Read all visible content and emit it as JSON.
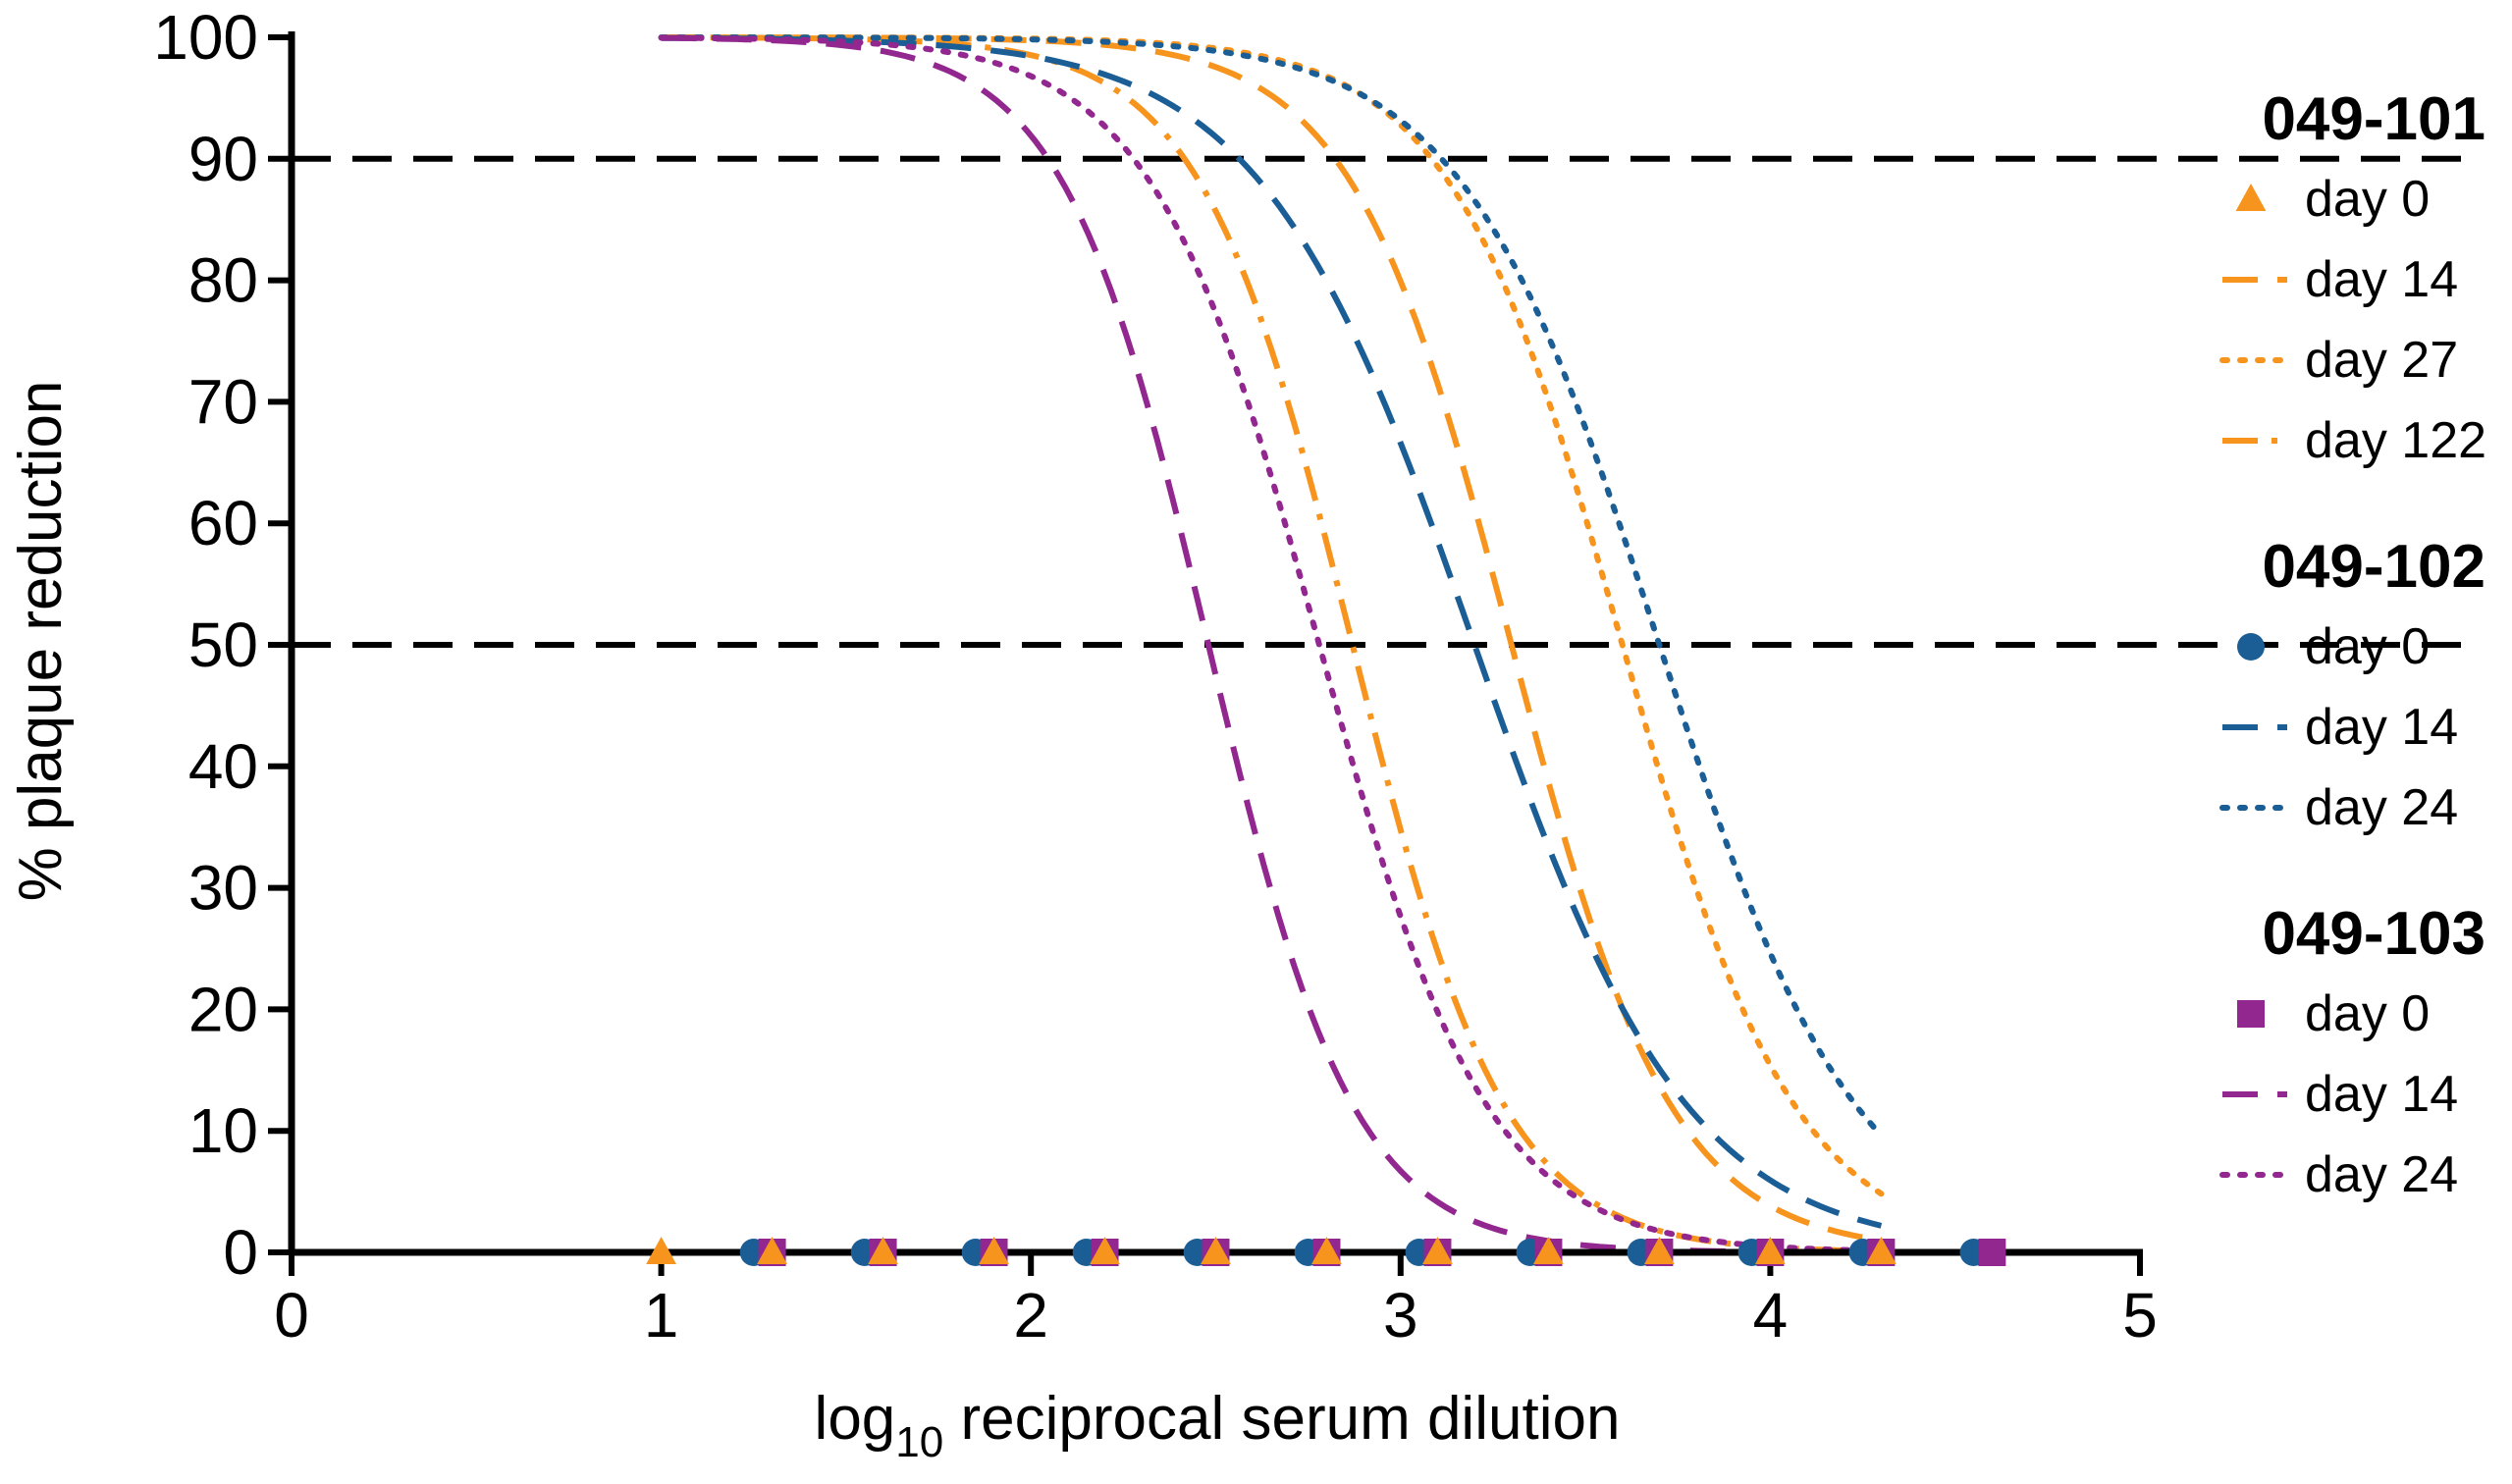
{
  "chart_data": {
    "type": "line",
    "title": "",
    "xlabel_main": "log",
    "xlabel_sub": "10",
    "xlabel_rest": " reciprocal serum dilution",
    "ylabel": "% plaque reduction",
    "xlim": [
      0,
      5
    ],
    "ylim": [
      0,
      100
    ],
    "x_ticks": [
      0,
      1,
      2,
      3,
      4,
      5
    ],
    "y_ticks": [
      0,
      10,
      20,
      30,
      40,
      50,
      60,
      70,
      80,
      90,
      100
    ],
    "reference_lines": [
      90,
      50
    ],
    "grid": false,
    "legend_position": "right",
    "colors": {
      "orange": "#F7941D",
      "blue": "#1B5E96",
      "purple": "#92278F",
      "axis": "#000000"
    },
    "legend_groups": [
      {
        "title": "049-101",
        "entries": [
          {
            "label": "day 0",
            "marker": "triangle",
            "color": "#F7941D"
          },
          {
            "label": "day 14",
            "dash": "dashed",
            "color": "#F7941D"
          },
          {
            "label": "day 27",
            "dash": "dotted",
            "color": "#F7941D"
          },
          {
            "label": "day 122",
            "dash": "dashdot",
            "color": "#F7941D"
          }
        ]
      },
      {
        "title": "049-102",
        "entries": [
          {
            "label": "day 0",
            "marker": "circle",
            "color": "#1B5E96"
          },
          {
            "label": "day 14",
            "dash": "dashed",
            "color": "#1B5E96"
          },
          {
            "label": "day 24",
            "dash": "dotted",
            "color": "#1B5E96"
          }
        ]
      },
      {
        "title": "049-103",
        "entries": [
          {
            "label": "day 0",
            "marker": "square",
            "color": "#92278F"
          },
          {
            "label": "day 14",
            "dash": "dashed",
            "color": "#92278F"
          },
          {
            "label": "day 24",
            "dash": "dotted",
            "color": "#92278F"
          }
        ]
      }
    ],
    "series": [
      {
        "group": "049-101",
        "name": "day 14",
        "color": "#F7941D",
        "dash": "dashed",
        "x_range": [
          1.0,
          4.3
        ],
        "ec50": 3.3,
        "hill": 2.0
      },
      {
        "group": "049-101",
        "name": "day 27",
        "color": "#F7941D",
        "dash": "dotted",
        "x_range": [
          1.0,
          4.3
        ],
        "ec50": 3.6,
        "hill": 1.85
      },
      {
        "group": "049-101",
        "name": "day 122",
        "color": "#F7941D",
        "dash": "dashdot",
        "x_range": [
          1.0,
          4.3
        ],
        "ec50": 2.87,
        "hill": 2.1
      },
      {
        "group": "049-102",
        "name": "day 14",
        "color": "#1B5E96",
        "dash": "dashed",
        "x_range": [
          1.0,
          4.3
        ],
        "ec50": 3.2,
        "hill": 1.5
      },
      {
        "group": "049-102",
        "name": "day 24",
        "color": "#1B5E96",
        "dash": "dotted",
        "x_range": [
          1.0,
          4.3
        ],
        "ec50": 3.7,
        "hill": 1.62
      },
      {
        "group": "049-103",
        "name": "day 14",
        "color": "#92278F",
        "dash": "dashed",
        "x_range": [
          1.0,
          4.3
        ],
        "ec50": 2.48,
        "hill": 2.2
      },
      {
        "group": "049-103",
        "name": "day 24",
        "color": "#92278F",
        "dash": "dotted",
        "x_range": [
          1.0,
          4.3
        ],
        "ec50": 2.78,
        "hill": 1.9
      }
    ],
    "day0_points": [
      {
        "group": "049-101",
        "marker": "triangle",
        "color": "#F7941D",
        "x": [
          1.0,
          1.3,
          1.6,
          1.9,
          2.2,
          2.5,
          2.8,
          3.1,
          3.4,
          3.7,
          4.0,
          4.3
        ],
        "y": 0
      },
      {
        "group": "049-102",
        "marker": "circle",
        "color": "#1B5E96",
        "x": [
          1.25,
          1.55,
          1.85,
          2.15,
          2.45,
          2.75,
          3.05,
          3.35,
          3.65,
          3.95,
          4.25,
          4.55
        ],
        "y": 0
      },
      {
        "group": "049-103",
        "marker": "square",
        "color": "#92278F",
        "x": [
          1.3,
          1.6,
          1.9,
          2.2,
          2.5,
          2.8,
          3.1,
          3.4,
          3.7,
          4.0,
          4.3,
          4.6
        ],
        "y": 0
      }
    ]
  }
}
